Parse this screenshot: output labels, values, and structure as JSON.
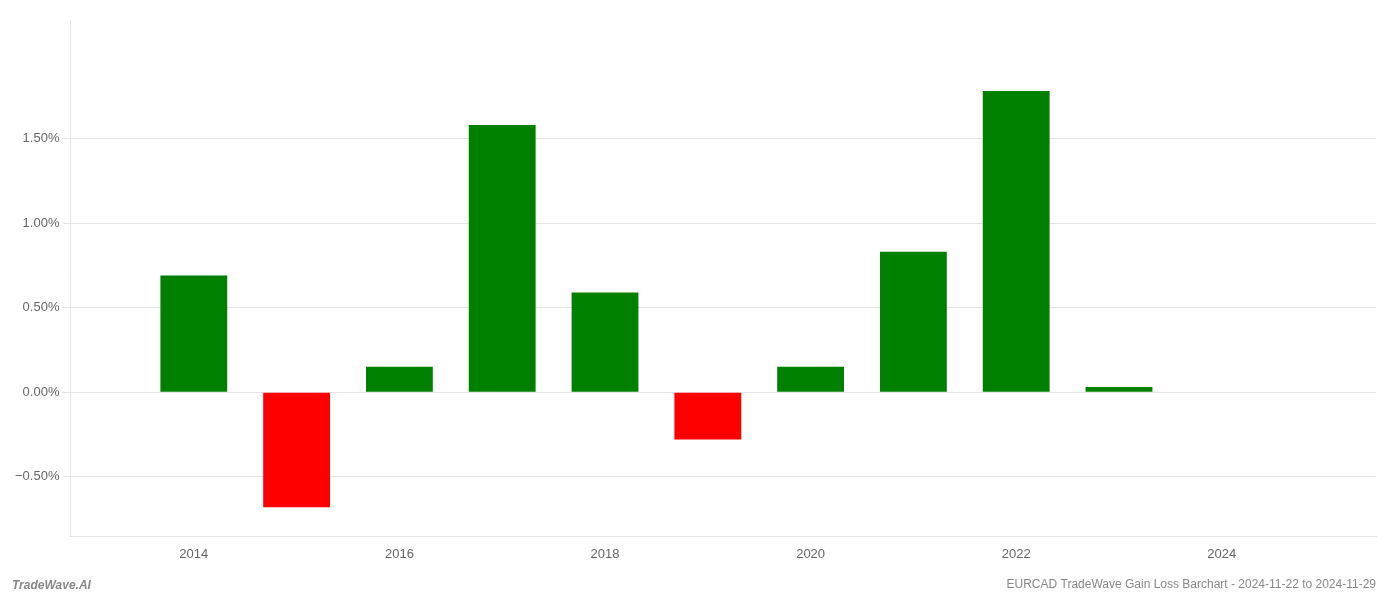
{
  "chart_data": {
    "type": "bar",
    "title": "EURCAD TradeWave Gain Loss Barchart - 2024-11-22 to 2024-11-29",
    "annotations": [
      "TradeWave.AI"
    ],
    "x": [
      2014,
      2015,
      2016,
      2017,
      2018,
      2019,
      2020,
      2021,
      2022,
      2023
    ],
    "values": [
      0.0069,
      -0.0068,
      0.0015,
      0.0158,
      0.0059,
      -0.0028,
      0.0015,
      0.0083,
      0.0178,
      0.0003
    ],
    "colors": [
      "#008000",
      "#ff0000",
      "#008000",
      "#008000",
      "#008000",
      "#ff0000",
      "#008000",
      "#008000",
      "#008000",
      "#008000"
    ],
    "xlim": [
      2012.8,
      2025.5
    ],
    "xticks": [
      2014,
      2016,
      2018,
      2020,
      2022,
      2024
    ],
    "ylim": [
      -0.0085,
      0.022
    ],
    "yticks": [
      {
        "value": -0.005,
        "label": "−0.50%"
      },
      {
        "value": 0.0,
        "label": "0.00%"
      },
      {
        "value": 0.005,
        "label": "0.50%"
      },
      {
        "value": 0.01,
        "label": "1.00%"
      },
      {
        "value": 0.015,
        "label": "1.50%"
      }
    ],
    "grid": true
  }
}
